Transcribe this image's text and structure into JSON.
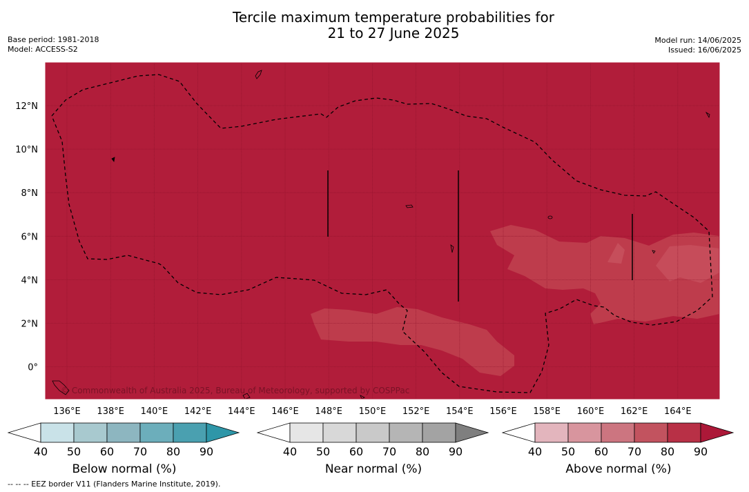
{
  "title": {
    "line1": "Tercile maximum temperature probabilities for",
    "line2": "21 to 27 June 2025"
  },
  "meta_left": {
    "base_period": "Base period: 1981-2018",
    "model": "Model: ACCESS-S2"
  },
  "meta_right": {
    "model_run": "Model run: 14/06/2025",
    "issued": "Issued: 16/06/2025"
  },
  "map": {
    "x_ticks": [
      "136°E",
      "138°E",
      "140°E",
      "142°E",
      "144°E",
      "146°E",
      "148°E",
      "150°E",
      "152°E",
      "154°E",
      "156°E",
      "158°E",
      "160°E",
      "162°E",
      "164°E"
    ],
    "y_ticks": [
      "12°N",
      "10°N",
      "8°N",
      "6°N",
      "4°N",
      "2°N",
      "0°"
    ],
    "copyright": "© Commonwealth of Australia 2025, Bureau of Meteorology, supported by COSPPac",
    "base_color": "#b11d3a",
    "lighter_patch_color": "#c0404f"
  },
  "colorbars": [
    {
      "name": "below",
      "title": "Below normal (%)",
      "labels": [
        "40",
        "50",
        "60",
        "70",
        "80",
        "90"
      ],
      "colors": [
        "#c9e2e8",
        "#a8c9cf",
        "#8db6c0",
        "#6caebb",
        "#4aa0b0",
        "#2e96a8"
      ]
    },
    {
      "name": "near",
      "title": "Near normal (%)",
      "labels": [
        "40",
        "50",
        "60",
        "70",
        "80",
        "90"
      ],
      "colors": [
        "#e6e6e6",
        "#d8d8d8",
        "#c9c9c9",
        "#b5b5b5",
        "#a3a3a3",
        "#7f7f7f"
      ]
    },
    {
      "name": "above",
      "title": "Above normal (%)",
      "labels": [
        "40",
        "50",
        "60",
        "70",
        "80",
        "90"
      ],
      "colors": [
        "#e3b5bd",
        "#d8959e",
        "#cc7580",
        "#c2535f",
        "#b83046",
        "#ac1838"
      ]
    }
  ],
  "footnote": "--  --  -- EEZ border V11 (Flanders Marine Institute, 2019)."
}
